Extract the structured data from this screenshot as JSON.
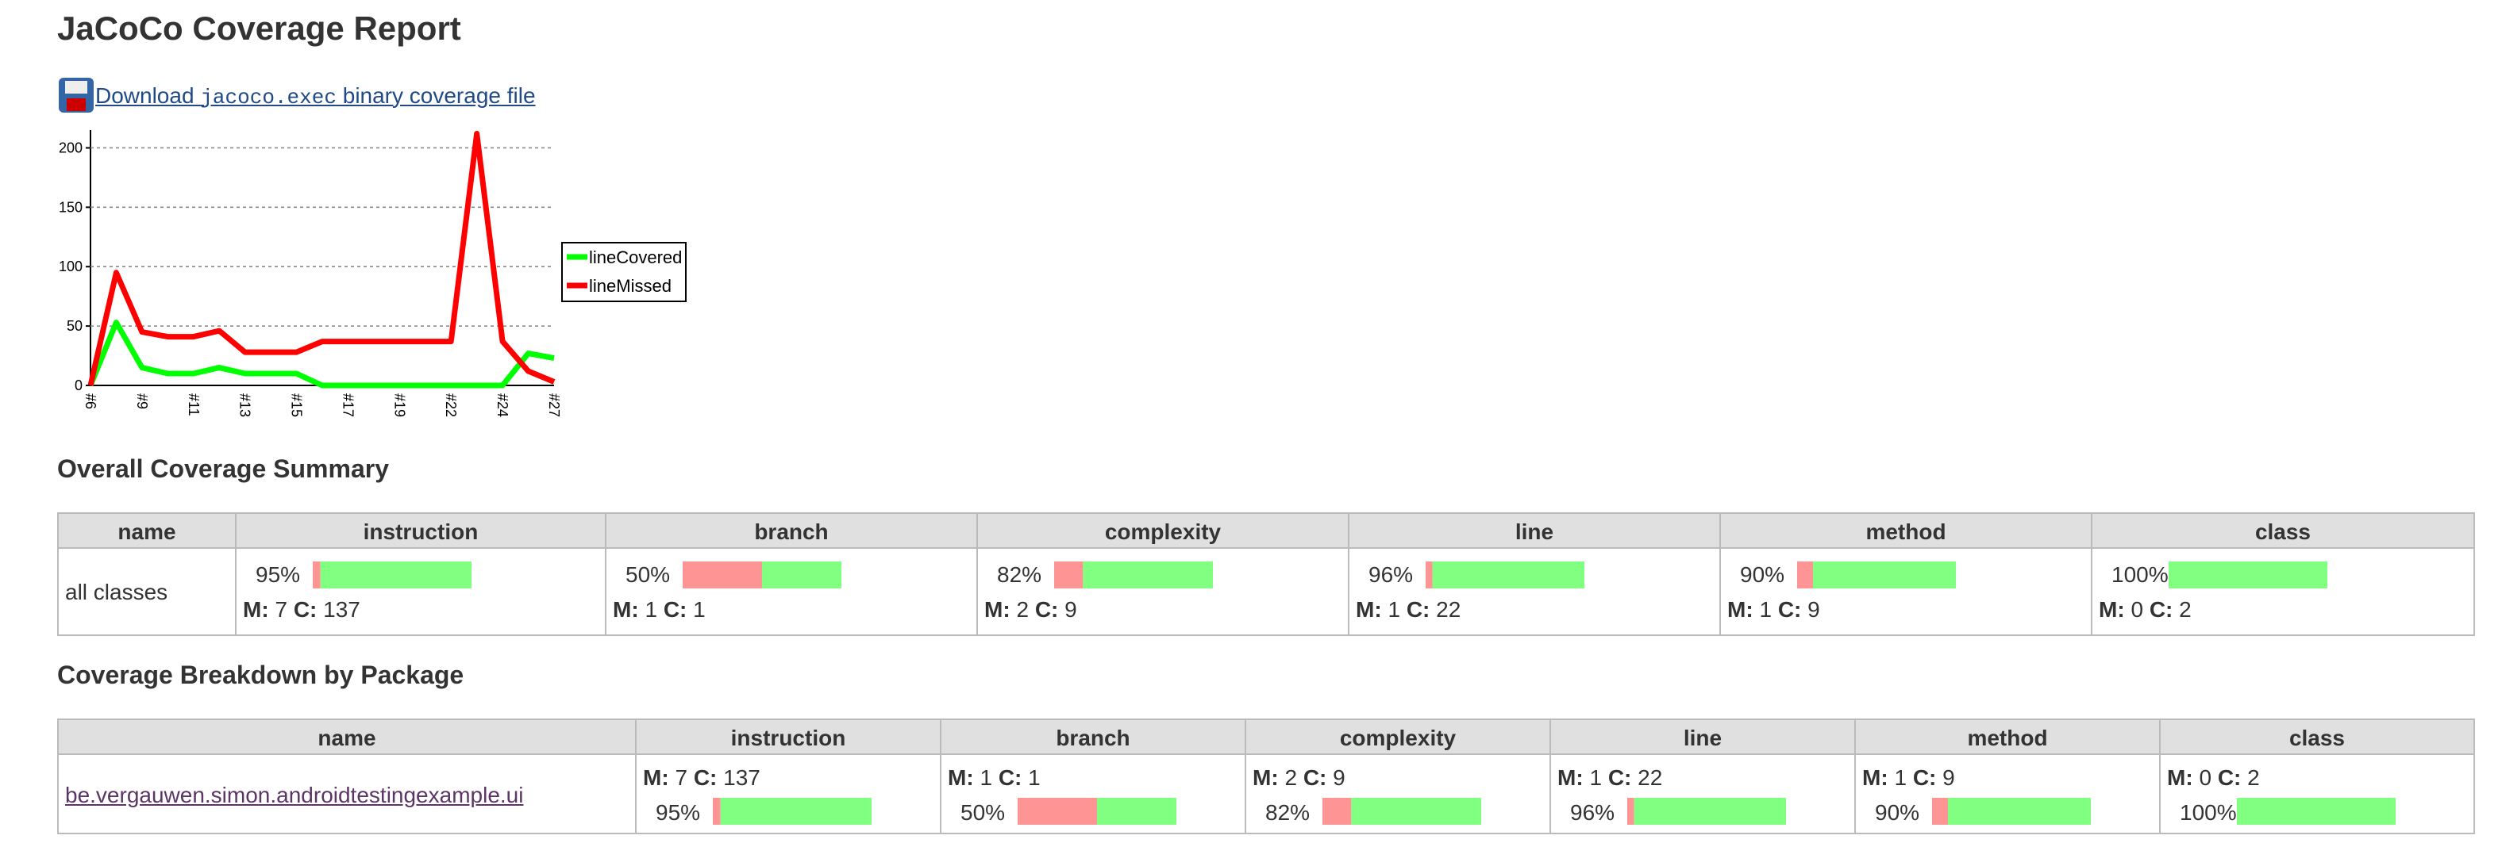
{
  "title": "JaCoCo Coverage Report",
  "download": {
    "prefix": "Download ",
    "file": "jacoco.exec",
    "suffix": " binary coverage file"
  },
  "trend_chart": {
    "type": "line",
    "categories": [
      "#6",
      null,
      "#9",
      null,
      "#11",
      null,
      "#13",
      null,
      "#15",
      null,
      "#17",
      null,
      "#19",
      null,
      "#22",
      null,
      "#24",
      null,
      "#27"
    ],
    "series": [
      {
        "name": "lineCovered",
        "color": "#00ff00",
        "values": [
          0,
          53,
          15,
          10,
          10,
          15,
          10,
          10,
          10,
          0,
          0,
          0,
          0,
          0,
          0,
          0,
          0,
          27,
          23
        ]
      },
      {
        "name": "lineMissed",
        "color": "#ff0000",
        "values": [
          0,
          95,
          45,
          41,
          41,
          46,
          28,
          28,
          28,
          37,
          37,
          37,
          37,
          37,
          37,
          212,
          37,
          12,
          3
        ]
      }
    ],
    "ylim": [
      0,
      215
    ],
    "yticks": [
      0,
      50,
      100,
      150,
      200
    ],
    "grid": true
  },
  "labels": {
    "missed": "M:",
    "covered": "C:"
  },
  "summary": {
    "title": "Overall Coverage Summary",
    "columns": [
      "name",
      "instruction",
      "branch",
      "complexity",
      "line",
      "method",
      "class"
    ],
    "rows": [
      {
        "name": "all classes",
        "cells": [
          {
            "pct": "95%",
            "missed": 7,
            "covered": 137
          },
          {
            "pct": "50%",
            "missed": 1,
            "covered": 1
          },
          {
            "pct": "82%",
            "missed": 2,
            "covered": 9
          },
          {
            "pct": "96%",
            "missed": 1,
            "covered": 22
          },
          {
            "pct": "90%",
            "missed": 1,
            "covered": 9
          },
          {
            "pct": "100%",
            "missed": 0,
            "covered": 2
          }
        ]
      }
    ]
  },
  "breakdown": {
    "title": "Coverage Breakdown by Package",
    "columns": [
      "name",
      "instruction",
      "branch",
      "complexity",
      "line",
      "method",
      "class"
    ],
    "rows": [
      {
        "name": "be.vergauwen.simon.androidtestingexample.ui",
        "cells": [
          {
            "pct": "95%",
            "missed": 7,
            "covered": 137
          },
          {
            "pct": "50%",
            "missed": 1,
            "covered": 1
          },
          {
            "pct": "82%",
            "missed": 2,
            "covered": 9
          },
          {
            "pct": "96%",
            "missed": 1,
            "covered": 22
          },
          {
            "pct": "90%",
            "missed": 1,
            "covered": 9
          },
          {
            "pct": "100%",
            "missed": 0,
            "covered": 2
          }
        ]
      }
    ]
  }
}
